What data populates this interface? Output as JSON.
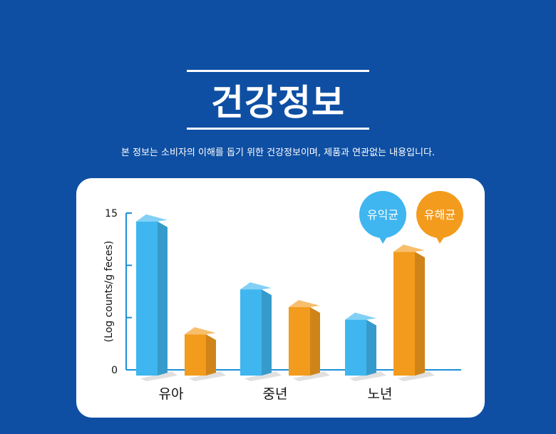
{
  "header": {
    "title": "건강정보",
    "subtitle": "본 정보는 소비자의 이해를 돕기 위한 건강정보이며, 제품과 연관없는 내용입니다."
  },
  "chart_data": {
    "type": "bar",
    "categories": [
      "유아",
      "중년",
      "노년"
    ],
    "series": [
      {
        "name": "유익균",
        "values": [
          14.2,
          7.7,
          4.8
        ],
        "color": "#3fb6ef"
      },
      {
        "name": "유해균",
        "values": [
          3.4,
          6.0,
          11.3
        ],
        "color": "#f39b1d"
      }
    ],
    "ylabel": "(Log counts/g feces)",
    "yticks": [
      {
        "value": 0,
        "label": "0"
      },
      {
        "value": 5,
        "label": ""
      },
      {
        "value": 10,
        "label": ""
      },
      {
        "value": 15,
        "label": "15"
      }
    ],
    "ylim": [
      0,
      15
    ],
    "legend": "top-right",
    "axis_color": "#1c8fd8"
  }
}
